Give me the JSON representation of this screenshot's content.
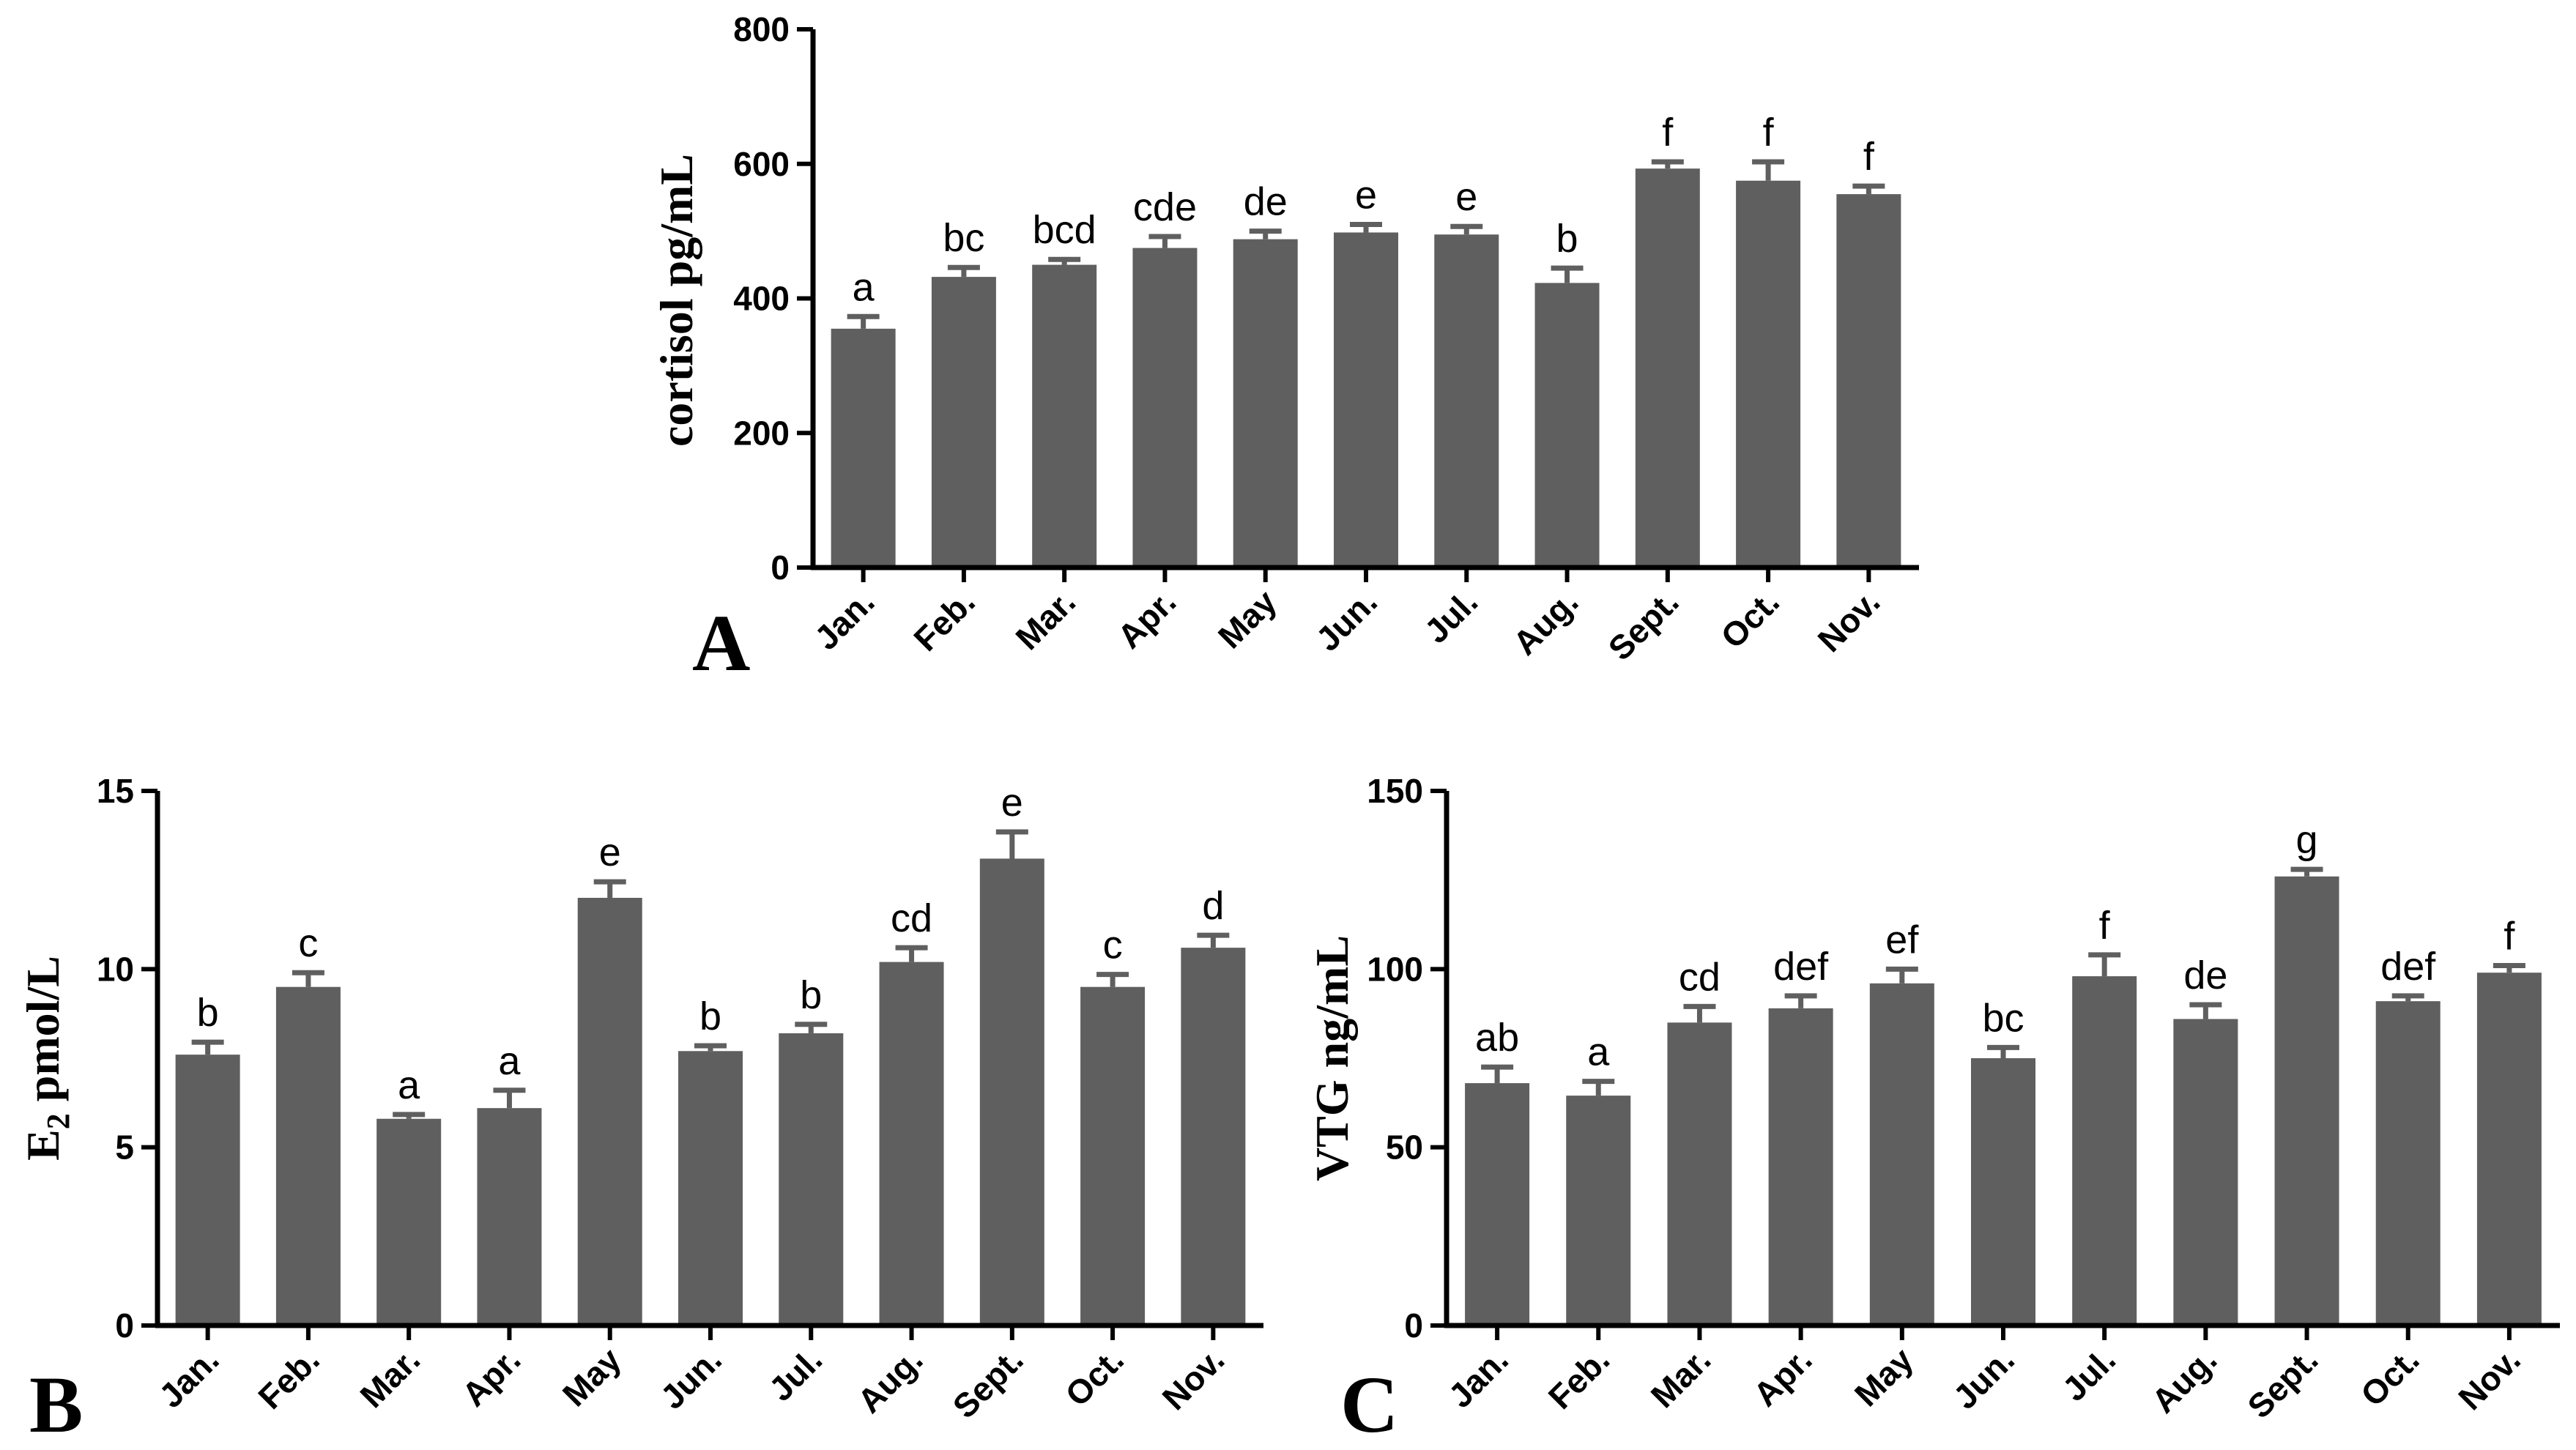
{
  "chart_data": [
    {
      "panel": "A",
      "type": "bar",
      "ylabel": "cortisol pg/mL",
      "ylim": [
        0,
        800
      ],
      "yticks": [
        0,
        200,
        400,
        600,
        800
      ],
      "categories": [
        "Jan.",
        "Feb.",
        "Mar.",
        "Apr.",
        "May",
        "Jun.",
        "Jul.",
        "Aug.",
        "Sept.",
        "Oct.",
        "Nov."
      ],
      "values": [
        355,
        432,
        450,
        475,
        488,
        498,
        495,
        423,
        593,
        575,
        555
      ],
      "errors": [
        18,
        14,
        8,
        17,
        12,
        12,
        12,
        22,
        10,
        28,
        12
      ],
      "significance": [
        "a",
        "bc",
        "bcd",
        "cde",
        "de",
        "e",
        "e",
        "b",
        "f",
        "f",
        "f"
      ],
      "color": "#5f5f5f"
    },
    {
      "panel": "B",
      "type": "bar",
      "ylabel": "E2 pmol/L",
      "ylabel_main": "E",
      "ylabel_sub": "2",
      "ylabel_rest": " pmol/L",
      "ylim": [
        0,
        15
      ],
      "yticks": [
        0,
        5,
        10,
        15
      ],
      "categories": [
        "Jan.",
        "Feb.",
        "Mar.",
        "Apr.",
        "May",
        "Jun.",
        "Jul.",
        "Aug.",
        "Sept.",
        "Oct.",
        "Nov."
      ],
      "values": [
        7.6,
        9.5,
        5.8,
        6.1,
        12.0,
        7.7,
        8.2,
        10.2,
        13.1,
        9.5,
        10.6
      ],
      "errors": [
        0.35,
        0.4,
        0.12,
        0.5,
        0.45,
        0.15,
        0.25,
        0.4,
        0.75,
        0.35,
        0.35
      ],
      "significance": [
        "b",
        "c",
        "a",
        "a",
        "e",
        "b",
        "b",
        "cd",
        "e",
        "c",
        "d"
      ],
      "color": "#5f5f5f"
    },
    {
      "panel": "C",
      "type": "bar",
      "ylabel": "VTG ng/mL",
      "ylim": [
        0,
        150
      ],
      "yticks": [
        0,
        50,
        100,
        150
      ],
      "categories": [
        "Jan.",
        "Feb.",
        "Mar.",
        "Apr.",
        "May",
        "Jun.",
        "Jul.",
        "Aug.",
        "Sept.",
        "Oct.",
        "Nov."
      ],
      "values": [
        68,
        64.5,
        85,
        89,
        96,
        75,
        98,
        86,
        126,
        91,
        99
      ],
      "errors": [
        4.5,
        4,
        4.5,
        3.5,
        4,
        3,
        6,
        4,
        2,
        1.5,
        2
      ],
      "significance": [
        "ab",
        "a",
        "cd",
        "def",
        "ef",
        "bc",
        "f",
        "de",
        "g",
        "def",
        "f"
      ],
      "color": "#5f5f5f"
    }
  ]
}
